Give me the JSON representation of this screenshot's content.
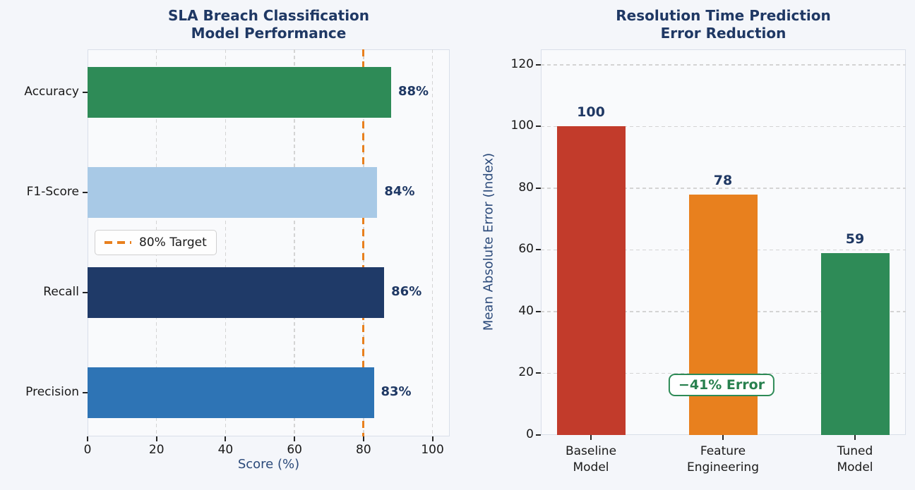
{
  "figure": {
    "background": "#f4f6fa"
  },
  "colors": {
    "title": "#1f3864",
    "axis_label": "#2b4a7a",
    "tick_label": "#1a1a1a",
    "value_label": "#1f3864",
    "grid": "#d4d4d4",
    "plot_bg": "#f9fafc",
    "plot_border": "#d9dfe9",
    "target_orange": "#e8801e",
    "annotation_green": "#2e8b57"
  },
  "chart_data": [
    {
      "type": "bar",
      "orientation": "horizontal",
      "title": "SLA Breach Classification\nModel Performance",
      "categories": [
        "Accuracy",
        "F1-Score",
        "Recall",
        "Precision"
      ],
      "values": [
        88,
        84,
        86,
        83
      ],
      "value_labels": [
        "88%",
        "84%",
        "86%",
        "83%"
      ],
      "bar_colors": [
        "#2e8b57",
        "#a8c9e6",
        "#1f3a68",
        "#2e74b5"
      ],
      "xlabel": "Score (%)",
      "xlim": [
        0,
        105
      ],
      "xticks": [
        0,
        20,
        40,
        60,
        80,
        100
      ],
      "grid": "vertical-dashed",
      "target_line": {
        "value": 80,
        "color": "#e8801e",
        "style": "dashed"
      },
      "legend": {
        "label": "80% Target",
        "position": "center-left",
        "swatch": "orange-dashed-line"
      }
    },
    {
      "type": "bar",
      "orientation": "vertical",
      "title": "Resolution Time Prediction\nError Reduction",
      "categories": [
        "Baseline\nModel",
        "Feature\nEngineering",
        "Tuned\nModel"
      ],
      "values": [
        100,
        78,
        59
      ],
      "value_labels": [
        "100",
        "78",
        "59"
      ],
      "bar_colors": [
        "#c23b2b",
        "#e8801e",
        "#2e8b57"
      ],
      "ylabel": "Mean Absolute Error (Index)",
      "ylim": [
        0,
        125
      ],
      "yticks": [
        0,
        20,
        40,
        60,
        80,
        100,
        120
      ],
      "grid": "horizontal-dashed",
      "annotation": {
        "text": "−41% Error",
        "color": "#28804e",
        "border_color": "#2e8b57",
        "anchor_category_index": 1,
        "y_value": 16
      }
    }
  ]
}
